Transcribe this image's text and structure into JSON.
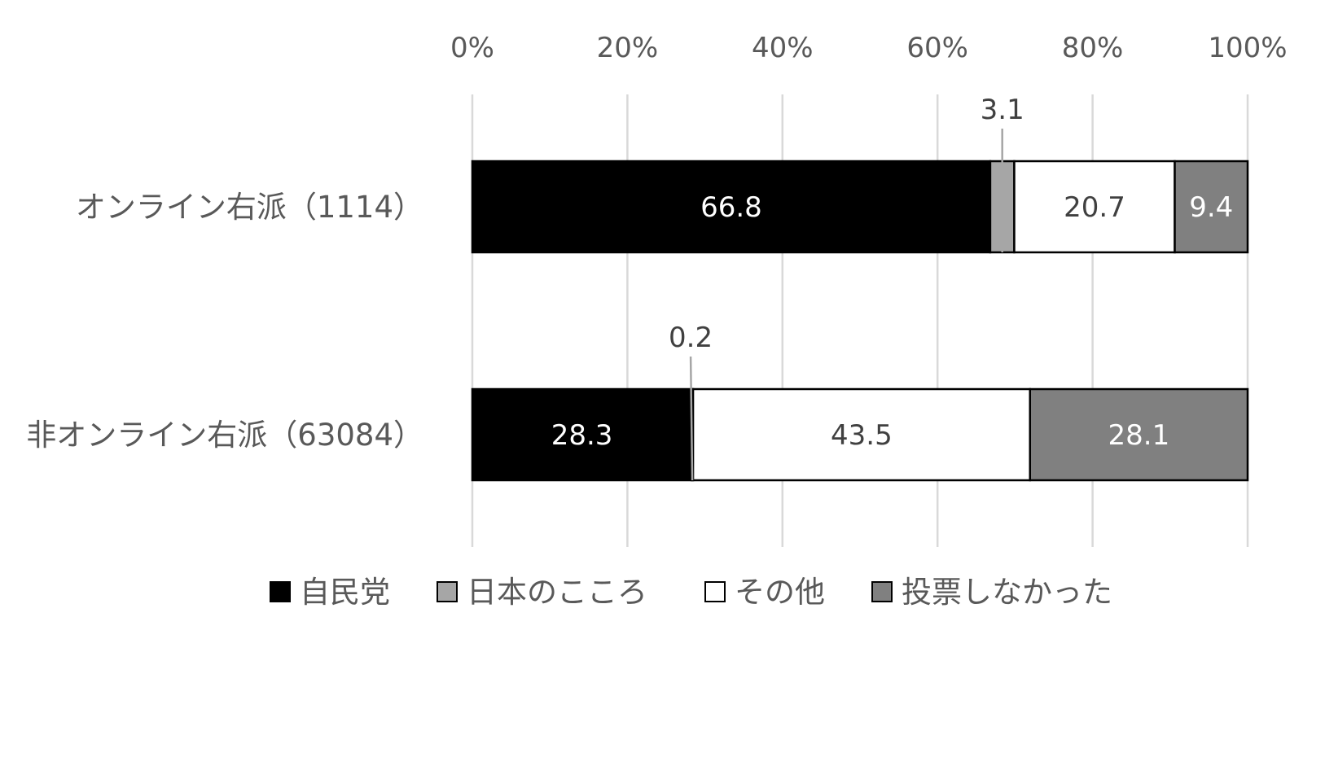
{
  "chart_data": {
    "type": "bar",
    "orientation": "horizontal",
    "stacked": "percent",
    "categories": [
      "オンライン右派（1114）",
      "非オンライン右派（63084）"
    ],
    "series": [
      {
        "name": "自民党",
        "values": [
          66.8,
          28.3
        ],
        "color": "#000000",
        "label_color": "#ffffff"
      },
      {
        "name": "日本のこころ",
        "values": [
          3.1,
          0.2
        ],
        "color": "#a6a6a6",
        "label_color": "#404040"
      },
      {
        "name": "その他",
        "values": [
          20.7,
          43.5
        ],
        "color": "#ffffff",
        "label_color": "#404040"
      },
      {
        "name": "投票しなかった",
        "values": [
          9.4,
          28.1
        ],
        "color": "#808080",
        "label_color": "#ffffff"
      }
    ],
    "data_labels": [
      [
        "66.8",
        "3.1",
        "20.7",
        "9.4"
      ],
      [
        "28.3",
        "0.2",
        "43.5",
        "28.1"
      ]
    ],
    "x_ticks": [
      "0%",
      "20%",
      "40%",
      "60%",
      "80%",
      "100%"
    ],
    "xlim": [
      0,
      100
    ],
    "x_axis_position": "top",
    "grid": true,
    "legend_position": "bottom"
  }
}
